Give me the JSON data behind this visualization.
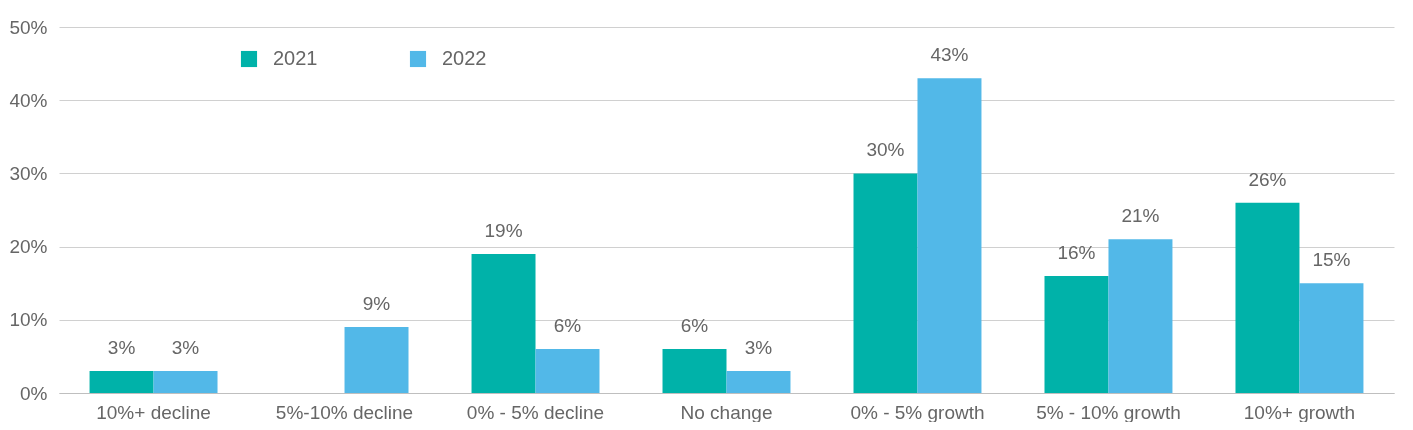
{
  "chart_data": {
    "type": "bar",
    "categories": [
      "10%+ decline",
      "5%-10% decline",
      "0% - 5% decline",
      "No change",
      "0% - 5% growth",
      "5% - 10% growth",
      "10%+ growth"
    ],
    "series": [
      {
        "name": "2021",
        "color": "#00b2a9",
        "values": [
          3,
          null,
          19,
          6,
          30,
          16,
          26
        ],
        "value_labels": [
          "3%",
          null,
          "19%",
          "6%",
          "30%",
          "16%",
          "26%"
        ]
      },
      {
        "name": "2022",
        "color": "#52b8e8",
        "values": [
          3,
          9,
          6,
          3,
          43,
          21,
          15
        ],
        "value_labels": [
          "3%",
          "9%",
          "6%",
          "3%",
          "43%",
          "21%",
          "15%"
        ]
      }
    ],
    "ylim": [
      0,
      50
    ],
    "yticks": [
      {
        "value": 0,
        "label": "0%"
      },
      {
        "value": 10,
        "label": "10%"
      },
      {
        "value": 20,
        "label": "20%"
      },
      {
        "value": 30,
        "label": "30%"
      },
      {
        "value": 40,
        "label": "40%"
      },
      {
        "value": 50,
        "label": "50%"
      }
    ],
    "grid": "y",
    "legend": "top left"
  }
}
